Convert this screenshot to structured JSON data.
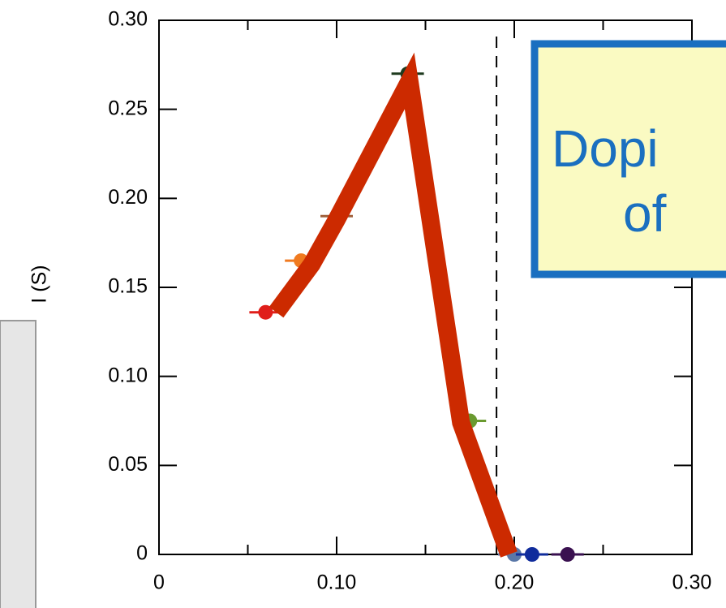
{
  "chart_data": {
    "type": "scatter",
    "ylabel": "I (S)",
    "xlim": [
      0,
      0.3
    ],
    "ylim": [
      0,
      0.3
    ],
    "xticks": [
      0,
      {
        "value": 0.1,
        "label": "0.10"
      },
      {
        "value": 0.2,
        "label": "0.20"
      },
      {
        "value": 0.3,
        "label": "0.30"
      }
    ],
    "xminor": [
      0.05,
      0.15,
      0.25
    ],
    "yticks": [
      0,
      {
        "value": 0.05,
        "label": "0.05"
      },
      {
        "value": 0.1,
        "label": "0.10"
      },
      {
        "value": 0.15,
        "label": "0.15"
      },
      {
        "value": 0.2,
        "label": "0.20"
      },
      {
        "value": 0.25,
        "label": "0.25"
      },
      {
        "value": 0.3,
        "label": "0.30"
      }
    ],
    "x": [
      0.06,
      0.08,
      0.1,
      0.14,
      0.175,
      0.2,
      0.21,
      0.23
    ],
    "values": [
      0.136,
      0.165,
      0.19,
      0.27,
      0.075,
      0,
      0,
      0
    ],
    "colors": [
      "#e01e1a",
      "#f07a20",
      "#a0603a",
      "#1e3a1e",
      "#6a9a30",
      "#5a78a8",
      "#102c9c",
      "#3a1050"
    ],
    "trend": {
      "x": [
        0.066,
        0.086,
        0.1,
        0.141,
        0.17,
        0.197
      ],
      "values": [
        0.136,
        0.163,
        0.188,
        0.266,
        0.074,
        0
      ],
      "color": "#cc2a00"
    },
    "vline": 0.19,
    "annotation": [
      "Dopi",
      "of"
    ]
  }
}
